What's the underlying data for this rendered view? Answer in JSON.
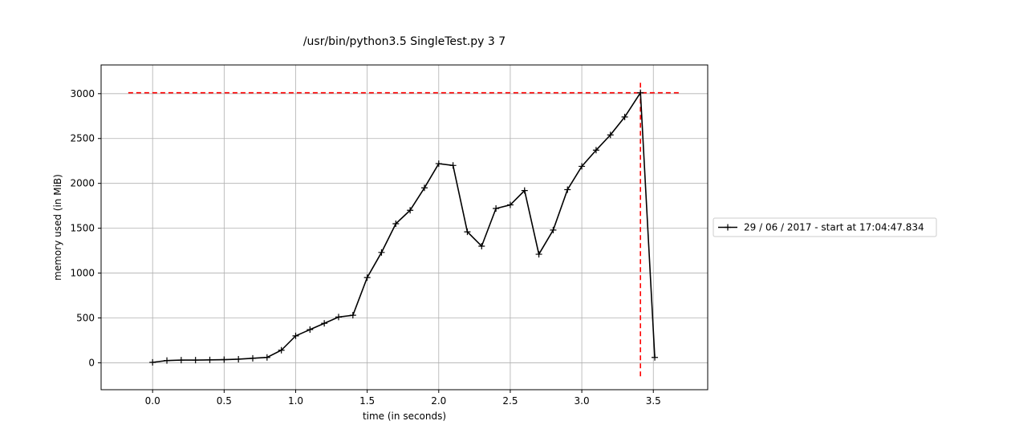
{
  "chart_data": {
    "type": "line",
    "title": "/usr/bin/python3.5 SingleTest.py 3 7",
    "xlabel": "time (in seconds)",
    "ylabel": "memory used (in MiB)",
    "xlim": [
      -0.36,
      3.88
    ],
    "ylim": [
      -300,
      3320
    ],
    "xticks": [
      0.0,
      0.5,
      1.0,
      1.5,
      2.0,
      2.5,
      3.0,
      3.5
    ],
    "xtick_labels": [
      "0.0",
      "0.5",
      "1.0",
      "1.5",
      "2.0",
      "2.5",
      "3.0",
      "3.5"
    ],
    "yticks": [
      0,
      500,
      1000,
      1500,
      2000,
      2500,
      3000
    ],
    "ytick_labels": [
      "0",
      "500",
      "1000",
      "1500",
      "2000",
      "2500",
      "3000"
    ],
    "grid": true,
    "legend_placement": "right-outside",
    "series": [
      {
        "name": "29 / 06 / 2017 - start at 17:04:47.834",
        "color": "#000000",
        "marker": "plus",
        "x": [
          0.0,
          0.1,
          0.2,
          0.3,
          0.4,
          0.5,
          0.6,
          0.7,
          0.8,
          0.9,
          1.0,
          1.1,
          1.2,
          1.3,
          1.4,
          1.5,
          1.6,
          1.7,
          1.8,
          1.9,
          2.0,
          2.1,
          2.2,
          2.3,
          2.4,
          2.5,
          2.6,
          2.7,
          2.8,
          2.9,
          3.0,
          3.1,
          3.2,
          3.3,
          3.41,
          3.51
        ],
        "y": [
          5,
          25,
          30,
          30,
          32,
          35,
          40,
          50,
          60,
          140,
          300,
          370,
          440,
          510,
          530,
          950,
          1230,
          1550,
          1700,
          1950,
          2220,
          2200,
          1460,
          1300,
          1720,
          1760,
          1920,
          1210,
          1480,
          1930,
          2190,
          2370,
          2540,
          2740,
          3010,
          60
        ]
      }
    ],
    "annotations": [
      {
        "type": "hline",
        "y": 3010,
        "x_from": -0.17,
        "x_to": 3.69,
        "color": "#ff0000",
        "style": "dashed"
      },
      {
        "type": "vline",
        "x": 3.41,
        "y_from": -150,
        "y_to": 3150,
        "color": "#ff0000",
        "style": "dashed"
      }
    ]
  }
}
